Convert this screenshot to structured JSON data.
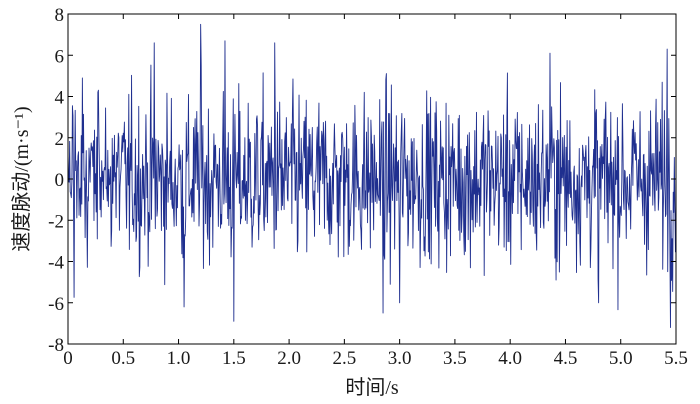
{
  "chart_data": {
    "type": "line",
    "title": "",
    "xlabel": "时间/s",
    "ylabel": "速度脉动/(m·s⁻¹)",
    "xlim": [
      0,
      5.5
    ],
    "ylim": [
      -8,
      8
    ],
    "x_ticks": [
      0,
      0.5,
      1.0,
      1.5,
      2.0,
      2.5,
      3.0,
      3.5,
      4.0,
      4.5,
      5.0,
      5.5
    ],
    "x_tick_labels": [
      "0",
      "0.5",
      "1.0",
      "1.5",
      "2.0",
      "2.5",
      "3.0",
      "3.5",
      "4.0",
      "4.5",
      "5.0",
      "5.5"
    ],
    "y_ticks": [
      -8,
      -6,
      -4,
      -2,
      0,
      2,
      4,
      6,
      8
    ],
    "y_tick_labels": [
      "-8",
      "-6",
      "-4",
      "-2",
      "0",
      "2",
      "4",
      "6",
      "8"
    ],
    "grid": false,
    "legend": "none",
    "series_color": "#1f2f8f",
    "signal": {
      "x_start": 0,
      "x_end": 5.5,
      "mean": 0,
      "approx_std": 2.0,
      "approx_max": 7.5,
      "approx_min": -7.2,
      "approx_samples": 1100,
      "notable_peaks": [
        {
          "x": 1.2,
          "y": 7.5
        },
        {
          "x": 1.42,
          "y": 6.7
        },
        {
          "x": 1.87,
          "y": 6.6
        },
        {
          "x": 0.78,
          "y": 6.6
        },
        {
          "x": 5.42,
          "y": 6.3
        },
        {
          "x": 4.36,
          "y": 6.1
        }
      ],
      "notable_troughs": [
        {
          "x": 1.5,
          "y": -6.9
        },
        {
          "x": 5.45,
          "y": -7.2
        },
        {
          "x": 1.05,
          "y": -6.2
        },
        {
          "x": 3.0,
          "y": -6.0
        },
        {
          "x": 4.8,
          "y": -6.0
        },
        {
          "x": 2.85,
          "y": -6.5
        }
      ]
    }
  }
}
